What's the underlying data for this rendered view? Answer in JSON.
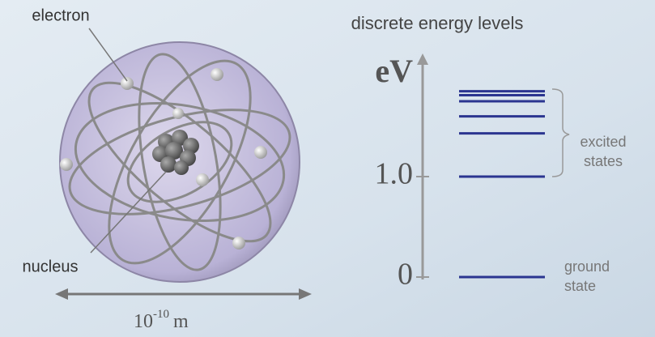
{
  "atom": {
    "electron_label": "electron",
    "nucleus_label": "nucleus",
    "scale": {
      "base": "10",
      "exponent": "-10",
      "unit": "m"
    }
  },
  "energy_diagram": {
    "title": "discrete energy levels",
    "axis_label": "eV",
    "yticks": [
      0,
      {
        "value": 1,
        "label": "1.0"
      }
    ],
    "levels": [
      0,
      1.0,
      1.43,
      1.6,
      1.75,
      1.81,
      1.85
    ],
    "excited_label": [
      "excited",
      "states"
    ],
    "ground_label": [
      "ground",
      "state"
    ]
  }
}
